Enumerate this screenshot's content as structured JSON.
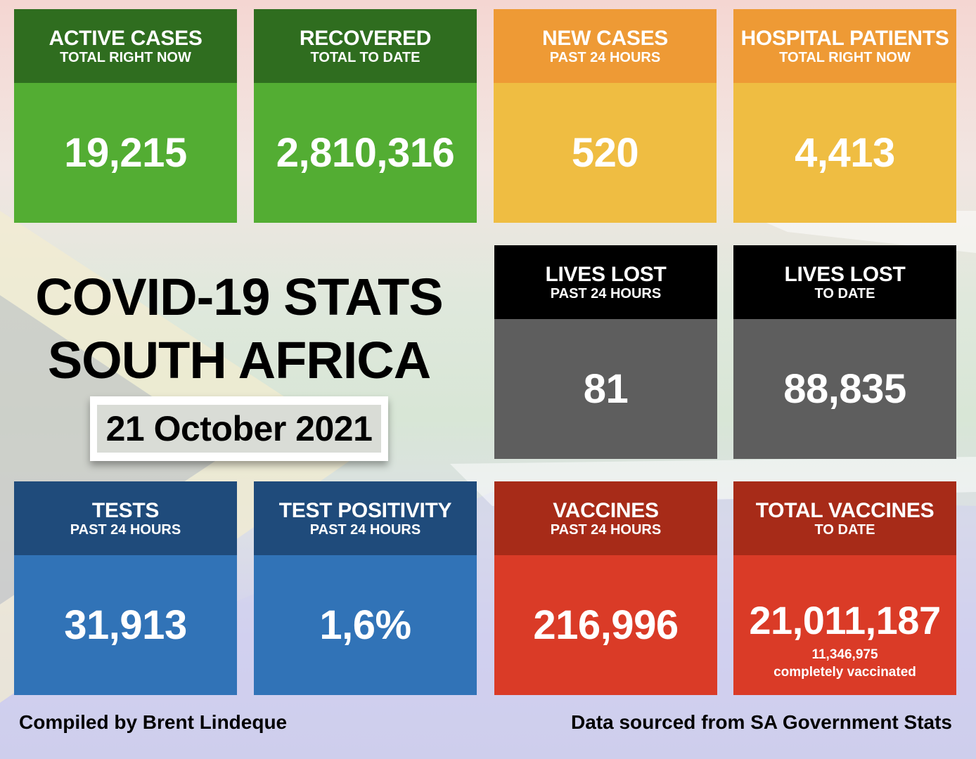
{
  "title": {
    "line1": "COVID-19 STATS",
    "line2": "SOUTH AFRICA",
    "date": "21 October 2021"
  },
  "cards": {
    "active": {
      "title": "ACTIVE CASES",
      "subtitle": "TOTAL RIGHT NOW",
      "value": "19,215",
      "color": "#53ad33"
    },
    "recovered": {
      "title": "RECOVERED",
      "subtitle": "TOTAL TO DATE",
      "value": "2,810,316",
      "color": "#53ad33"
    },
    "new_cases": {
      "title": "NEW CASES",
      "subtitle": "PAST 24 HOURS",
      "value": "520",
      "color": "#efbd42"
    },
    "hospital": {
      "title": "HOSPITAL PATIENTS",
      "subtitle": "TOTAL RIGHT NOW",
      "value": "4,413",
      "color": "#efbd42"
    },
    "deaths_24h": {
      "title": "LIVES LOST",
      "subtitle": "PAST 24 HOURS",
      "value": "81",
      "color": "#5e5e5e"
    },
    "deaths_total": {
      "title": "LIVES LOST",
      "subtitle": "TO DATE",
      "value": "88,835",
      "color": "#5e5e5e"
    },
    "tests": {
      "title": "TESTS",
      "subtitle": "PAST 24 HOURS",
      "value": "31,913",
      "color": "#3173b7"
    },
    "positivity": {
      "title": "TEST POSITIVITY",
      "subtitle": "PAST 24 HOURS",
      "value": "1,6%",
      "color": "#3173b7"
    },
    "vaccines_24h": {
      "title": "VACCINES",
      "subtitle": "PAST 24 HOURS",
      "value": "216,996",
      "color": "#da3b27"
    },
    "vaccines_total": {
      "title": "TOTAL VACCINES",
      "subtitle": "TO DATE",
      "value": "21,011,187",
      "note_value": "11,346,975",
      "note_label": "completely vaccinated",
      "color": "#da3b27"
    }
  },
  "footer": {
    "left": "Compiled by Brent Lindeque",
    "right": "Data sourced from SA Government Stats"
  }
}
